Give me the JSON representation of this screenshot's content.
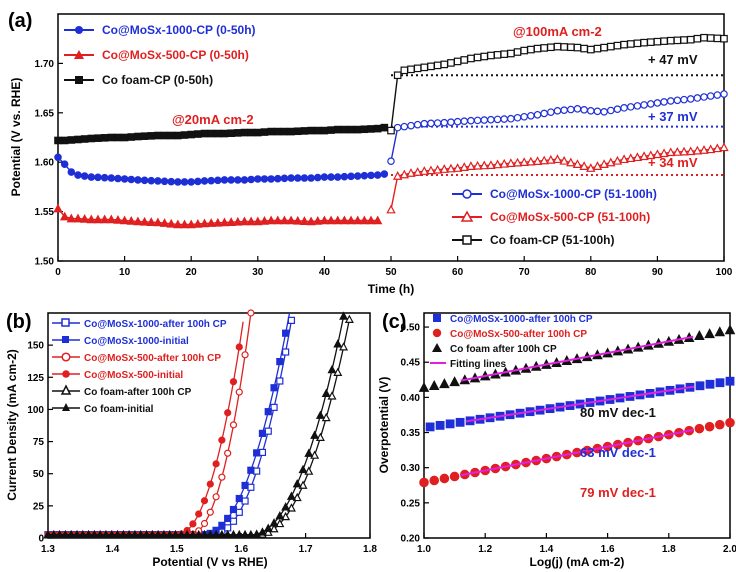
{
  "chart_data": [
    {
      "panel_label": "(a)",
      "type": "line",
      "xlabel": "Time (h)",
      "ylabel": "Potential (V vs. RHE)",
      "xlim": [
        0,
        100
      ],
      "ylim": [
        1.5,
        1.75
      ],
      "xticks": [
        "0",
        "10",
        "20",
        "30",
        "40",
        "50",
        "60",
        "70",
        "80",
        "90",
        "100"
      ],
      "yticks": [
        "1.50",
        "1.55",
        "1.60",
        "1.65",
        "1.70"
      ],
      "legend_top": [
        "Co@MoSx-1000-CP (0-50h)",
        "Co@MoSx-500-CP (0-50h)",
        "Co foam-CP (0-50h)"
      ],
      "legend_bottom": [
        "Co@MoSx-1000-CP (51-100h)",
        "Co@MoSx-500-CP (51-100h)",
        "Co foam-CP (51-100h)"
      ],
      "annotations": [
        "@20mA cm-2",
        "@100mA cm-2",
        "+ 47 mV",
        "+ 37 mV",
        "+ 34 mV"
      ],
      "colors": {
        "co1000": "#1f2fd6",
        "co500": "#e02020",
        "cofoam": "#111111"
      },
      "series": [
        {
          "name": "Co@MoSx-1000-CP (0-50h)",
          "x": [
            0,
            1,
            2,
            3,
            5,
            8,
            10,
            12,
            15,
            18,
            20,
            22,
            25,
            28,
            30,
            32,
            35,
            38,
            40,
            42,
            45,
            48,
            49
          ],
          "y": [
            1.605,
            1.598,
            1.59,
            1.587,
            1.585,
            1.584,
            1.583,
            1.582,
            1.581,
            1.58,
            1.58,
            1.581,
            1.582,
            1.582,
            1.583,
            1.583,
            1.584,
            1.584,
            1.585,
            1.585,
            1.586,
            1.587,
            1.588
          ]
        },
        {
          "name": "Co@MoSx-500-CP (0-50h)",
          "x": [
            0,
            1,
            2,
            3,
            5,
            8,
            10,
            12,
            15,
            18,
            20,
            22,
            25,
            28,
            30,
            32,
            35,
            38,
            40,
            42,
            45,
            48
          ],
          "y": [
            1.553,
            1.545,
            1.543,
            1.543,
            1.542,
            1.542,
            1.541,
            1.54,
            1.539,
            1.537,
            1.537,
            1.538,
            1.539,
            1.54,
            1.54,
            1.541,
            1.541,
            1.54,
            1.541,
            1.541,
            1.541,
            1.541
          ]
        },
        {
          "name": "Co foam-CP (0-50h)",
          "x": [
            0,
            1,
            3,
            5,
            8,
            10,
            12,
            15,
            18,
            20,
            22,
            25,
            28,
            30,
            32,
            35,
            38,
            40,
            42,
            45,
            48,
            49
          ],
          "y": [
            1.622,
            1.622,
            1.623,
            1.624,
            1.625,
            1.625,
            1.626,
            1.627,
            1.627,
            1.628,
            1.629,
            1.629,
            1.63,
            1.63,
            1.631,
            1.631,
            1.632,
            1.632,
            1.633,
            1.633,
            1.634,
            1.635
          ]
        },
        {
          "name": "Co@MoSx-1000-CP (51-100h)",
          "x": [
            50,
            51,
            53,
            55,
            58,
            60,
            62,
            65,
            68,
            70,
            72,
            75,
            78,
            80,
            82,
            85,
            88,
            90,
            92,
            95,
            98,
            100
          ],
          "y": [
            1.601,
            1.635,
            1.637,
            1.639,
            1.64,
            1.641,
            1.642,
            1.643,
            1.644,
            1.646,
            1.648,
            1.652,
            1.654,
            1.652,
            1.651,
            1.655,
            1.658,
            1.66,
            1.662,
            1.664,
            1.667,
            1.669
          ]
        },
        {
          "name": "Co@MoSx-500-CP (51-100h)",
          "x": [
            50,
            51,
            53,
            55,
            58,
            60,
            62,
            65,
            68,
            70,
            72,
            75,
            78,
            80,
            82,
            85,
            88,
            90,
            92,
            95,
            98,
            100
          ],
          "y": [
            1.552,
            1.586,
            1.589,
            1.591,
            1.593,
            1.594,
            1.596,
            1.597,
            1.599,
            1.6,
            1.601,
            1.603,
            1.598,
            1.594,
            1.598,
            1.603,
            1.606,
            1.608,
            1.61,
            1.611,
            1.613,
            1.615
          ]
        },
        {
          "name": "Co foam-CP (51-100h)",
          "x": [
            50,
            51,
            52,
            55,
            58,
            60,
            62,
            65,
            68,
            70,
            72,
            75,
            78,
            80,
            82,
            85,
            88,
            90,
            92,
            95,
            97,
            100
          ],
          "y": [
            1.632,
            1.688,
            1.693,
            1.696,
            1.699,
            1.702,
            1.705,
            1.708,
            1.71,
            1.713,
            1.715,
            1.717,
            1.716,
            1.714,
            1.716,
            1.719,
            1.721,
            1.722,
            1.723,
            1.724,
            1.726,
            1.725
          ]
        }
      ],
      "reference_lines": [
        1.688,
        1.636,
        1.587
      ]
    },
    {
      "panel_label": "(b)",
      "type": "line",
      "xlabel": "Potential (V vs RHE)",
      "ylabel": "Current Density (mA cm-2)",
      "xlim": [
        1.3,
        1.8
      ],
      "ylim": [
        0,
        175
      ],
      "xticks": [
        "1.3",
        "1.4",
        "1.5",
        "1.6",
        "1.7",
        "1.8"
      ],
      "yticks": [
        "0",
        "25",
        "50",
        "75",
        "100",
        "125",
        "150"
      ],
      "legend": [
        "Co@MoSx-1000-after 100h CP",
        "Co@MoSx-1000-initial",
        "Co@MoSx-500-after 100h CP",
        "Co@MoSx-500-initial",
        "Co foam-after 100h CP",
        "Co foam-initial"
      ],
      "series": [
        {
          "name": "Co@MoSx-1000-after 100h CP",
          "onset": 1.555,
          "ref_potential": 1.68
        },
        {
          "name": "Co@MoSx-1000-initial",
          "onset": 1.54,
          "ref_potential": 1.675
        },
        {
          "name": "Co@MoSx-500-after 100h CP",
          "onset": 1.52,
          "ref_potential": 1.615
        },
        {
          "name": "Co@MoSx-500-initial",
          "onset": 1.5,
          "ref_potential": 1.605
        },
        {
          "name": "Co foam-after 100h CP",
          "onset": 1.625,
          "ref_potential": 1.77
        },
        {
          "name": "Co foam-initial",
          "onset": 1.615,
          "ref_potential": 1.76
        }
      ]
    },
    {
      "panel_label": "(c)",
      "type": "scatter",
      "xlabel": "Log(j) (mA cm-2)",
      "ylabel": "Overpotential (V)",
      "xlim": [
        1.0,
        2.0
      ],
      "ylim": [
        0.2,
        0.52
      ],
      "xticks": [
        "1.0",
        "1.2",
        "1.4",
        "1.6",
        "1.8",
        "2.0"
      ],
      "yticks": [
        "0.20",
        "0.25",
        "0.30",
        "0.35",
        "0.40",
        "0.45",
        "0.50"
      ],
      "legend": [
        "Co@MoSx-1000-after 100h CP",
        "Co@MoSx-500-after 100h CP",
        "Co foam after 100h CP",
        "Fitting lines"
      ],
      "annotations": [
        "80 mV dec-1",
        "63 mV dec-1",
        "79 mV dec-1"
      ],
      "series": [
        {
          "name": "Co@MoSx-1000-after 100h CP",
          "x0": 1.02,
          "x1": 2.0,
          "y0": 0.358,
          "y1": 0.423
        },
        {
          "name": "Co@MoSx-500-after 100h CP",
          "x0": 1.0,
          "x1": 2.0,
          "y0": 0.279,
          "y1": 0.364
        },
        {
          "name": "Co foam after 100h CP",
          "x0": 1.0,
          "x1": 2.0,
          "y0": 0.414,
          "y1": 0.496
        }
      ]
    }
  ]
}
